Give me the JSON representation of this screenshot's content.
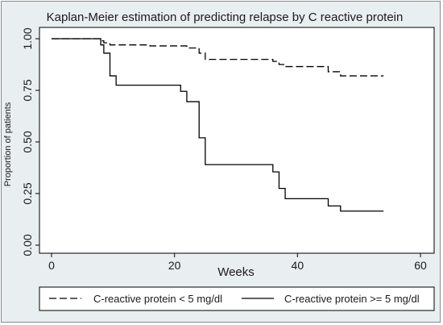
{
  "chart_data": {
    "type": "line",
    "title": "Kaplan-Meier estimation of predicting relapse by C reactive protein",
    "xlabel": "Weeks",
    "ylabel": "Proportion of patients",
    "xlim": [
      0,
      60
    ],
    "ylim": [
      0,
      1
    ],
    "x_ticks": [
      0,
      20,
      40,
      60
    ],
    "x_tick_labels": [
      "0",
      "20",
      "40",
      "60"
    ],
    "y_ticks": [
      0,
      0.25,
      0.5,
      0.75,
      1
    ],
    "y_tick_labels": [
      "0.00",
      "0.25",
      "0.50",
      "0.75",
      "1.00"
    ],
    "grid": false,
    "legend_position": "bottom",
    "step": true,
    "series": [
      {
        "name": "C-reactive protein < 5  mg/dl",
        "line_style": "dashed",
        "color": "#000000",
        "x": [
          0,
          8,
          8.5,
          9.5,
          16,
          22,
          24,
          25,
          36,
          37,
          38,
          45,
          47,
          54
        ],
        "y": [
          1.0,
          0.99,
          0.98,
          0.97,
          0.965,
          0.955,
          0.93,
          0.9,
          0.89,
          0.875,
          0.865,
          0.84,
          0.82,
          0.82
        ]
      },
      {
        "name": "C-reactive protein >= 5  mg/dl",
        "line_style": "solid",
        "color": "#000000",
        "x": [
          0,
          8,
          8.5,
          9.5,
          10.5,
          21,
          22,
          24,
          25,
          36,
          37,
          38,
          45,
          47,
          54
        ],
        "y": [
          1.0,
          0.97,
          0.93,
          0.82,
          0.775,
          0.745,
          0.695,
          0.52,
          0.39,
          0.355,
          0.275,
          0.225,
          0.19,
          0.165,
          0.165
        ]
      }
    ]
  }
}
